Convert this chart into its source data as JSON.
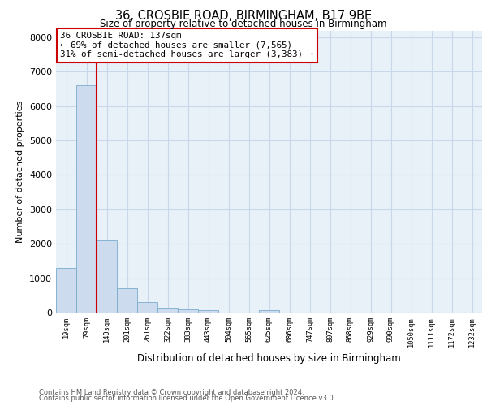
{
  "title_line1": "36, CROSBIE ROAD, BIRMINGHAM, B17 9BE",
  "title_line2": "Size of property relative to detached houses in Birmingham",
  "xlabel": "Distribution of detached houses by size in Birmingham",
  "ylabel": "Number of detached properties",
  "categories": [
    "19sqm",
    "79sqm",
    "140sqm",
    "201sqm",
    "261sqm",
    "322sqm",
    "383sqm",
    "443sqm",
    "504sqm",
    "565sqm",
    "625sqm",
    "686sqm",
    "747sqm",
    "807sqm",
    "868sqm",
    "929sqm",
    "990sqm",
    "1050sqm",
    "1111sqm",
    "1172sqm",
    "1232sqm"
  ],
  "values": [
    1300,
    6600,
    2100,
    700,
    300,
    130,
    90,
    60,
    0,
    0,
    60,
    0,
    0,
    0,
    0,
    0,
    0,
    0,
    0,
    0,
    0
  ],
  "bar_color": "#ccdcee",
  "bar_edge_color": "#7aaccc",
  "vline_color": "#cc0000",
  "annotation_title": "36 CROSBIE ROAD: 137sqm",
  "annotation_line1": "← 69% of detached houses are smaller (7,565)",
  "annotation_line2": "31% of semi-detached houses are larger (3,383) →",
  "annotation_box_facecolor": "#ffffff",
  "annotation_box_edgecolor": "#cc0000",
  "ylim": [
    0,
    8200
  ],
  "yticks": [
    0,
    1000,
    2000,
    3000,
    4000,
    5000,
    6000,
    7000,
    8000
  ],
  "grid_color": "#c8d8e8",
  "axes_bg_color": "#e8f0f8",
  "footer_line1": "Contains HM Land Registry data © Crown copyright and database right 2024.",
  "footer_line2": "Contains public sector information licensed under the Open Government Licence v3.0."
}
